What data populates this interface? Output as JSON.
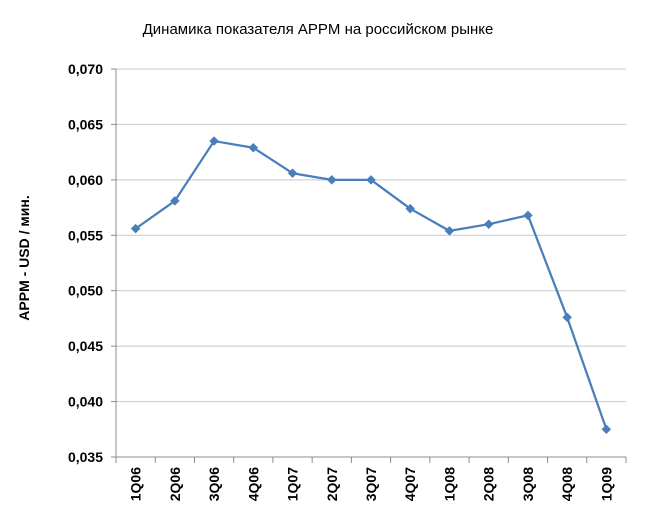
{
  "chart_data": {
    "type": "line",
    "title": "Динамика показателя APPM на российском рынке",
    "xlabel": "",
    "ylabel": "APPM - USD / мин.",
    "categories": [
      "1Q06",
      "2Q06",
      "3Q06",
      "4Q06",
      "1Q07",
      "2Q07",
      "3Q07",
      "4Q07",
      "1Q08",
      "2Q08",
      "3Q08",
      "4Q08",
      "1Q09"
    ],
    "series": [
      {
        "values": [
          0.0556,
          0.0581,
          0.0635,
          0.0629,
          0.0606,
          0.06,
          0.06,
          0.0574,
          0.0554,
          0.056,
          0.0568,
          0.0476,
          0.0375
        ]
      }
    ],
    "ylim": [
      0.035,
      0.07
    ],
    "yticks": [
      "0,070",
      "0,065",
      "0,060",
      "0,055",
      "0,050",
      "0,045",
      "0,040",
      "0,035"
    ],
    "ytick_values": [
      0.07,
      0.065,
      0.06,
      0.055,
      0.05,
      0.045,
      0.04,
      0.035
    ],
    "grid": true,
    "legend": "none",
    "colors": {
      "line": "#4a7ebb",
      "grid": "#c8c8c8",
      "axis": "#8c8c8c"
    }
  }
}
